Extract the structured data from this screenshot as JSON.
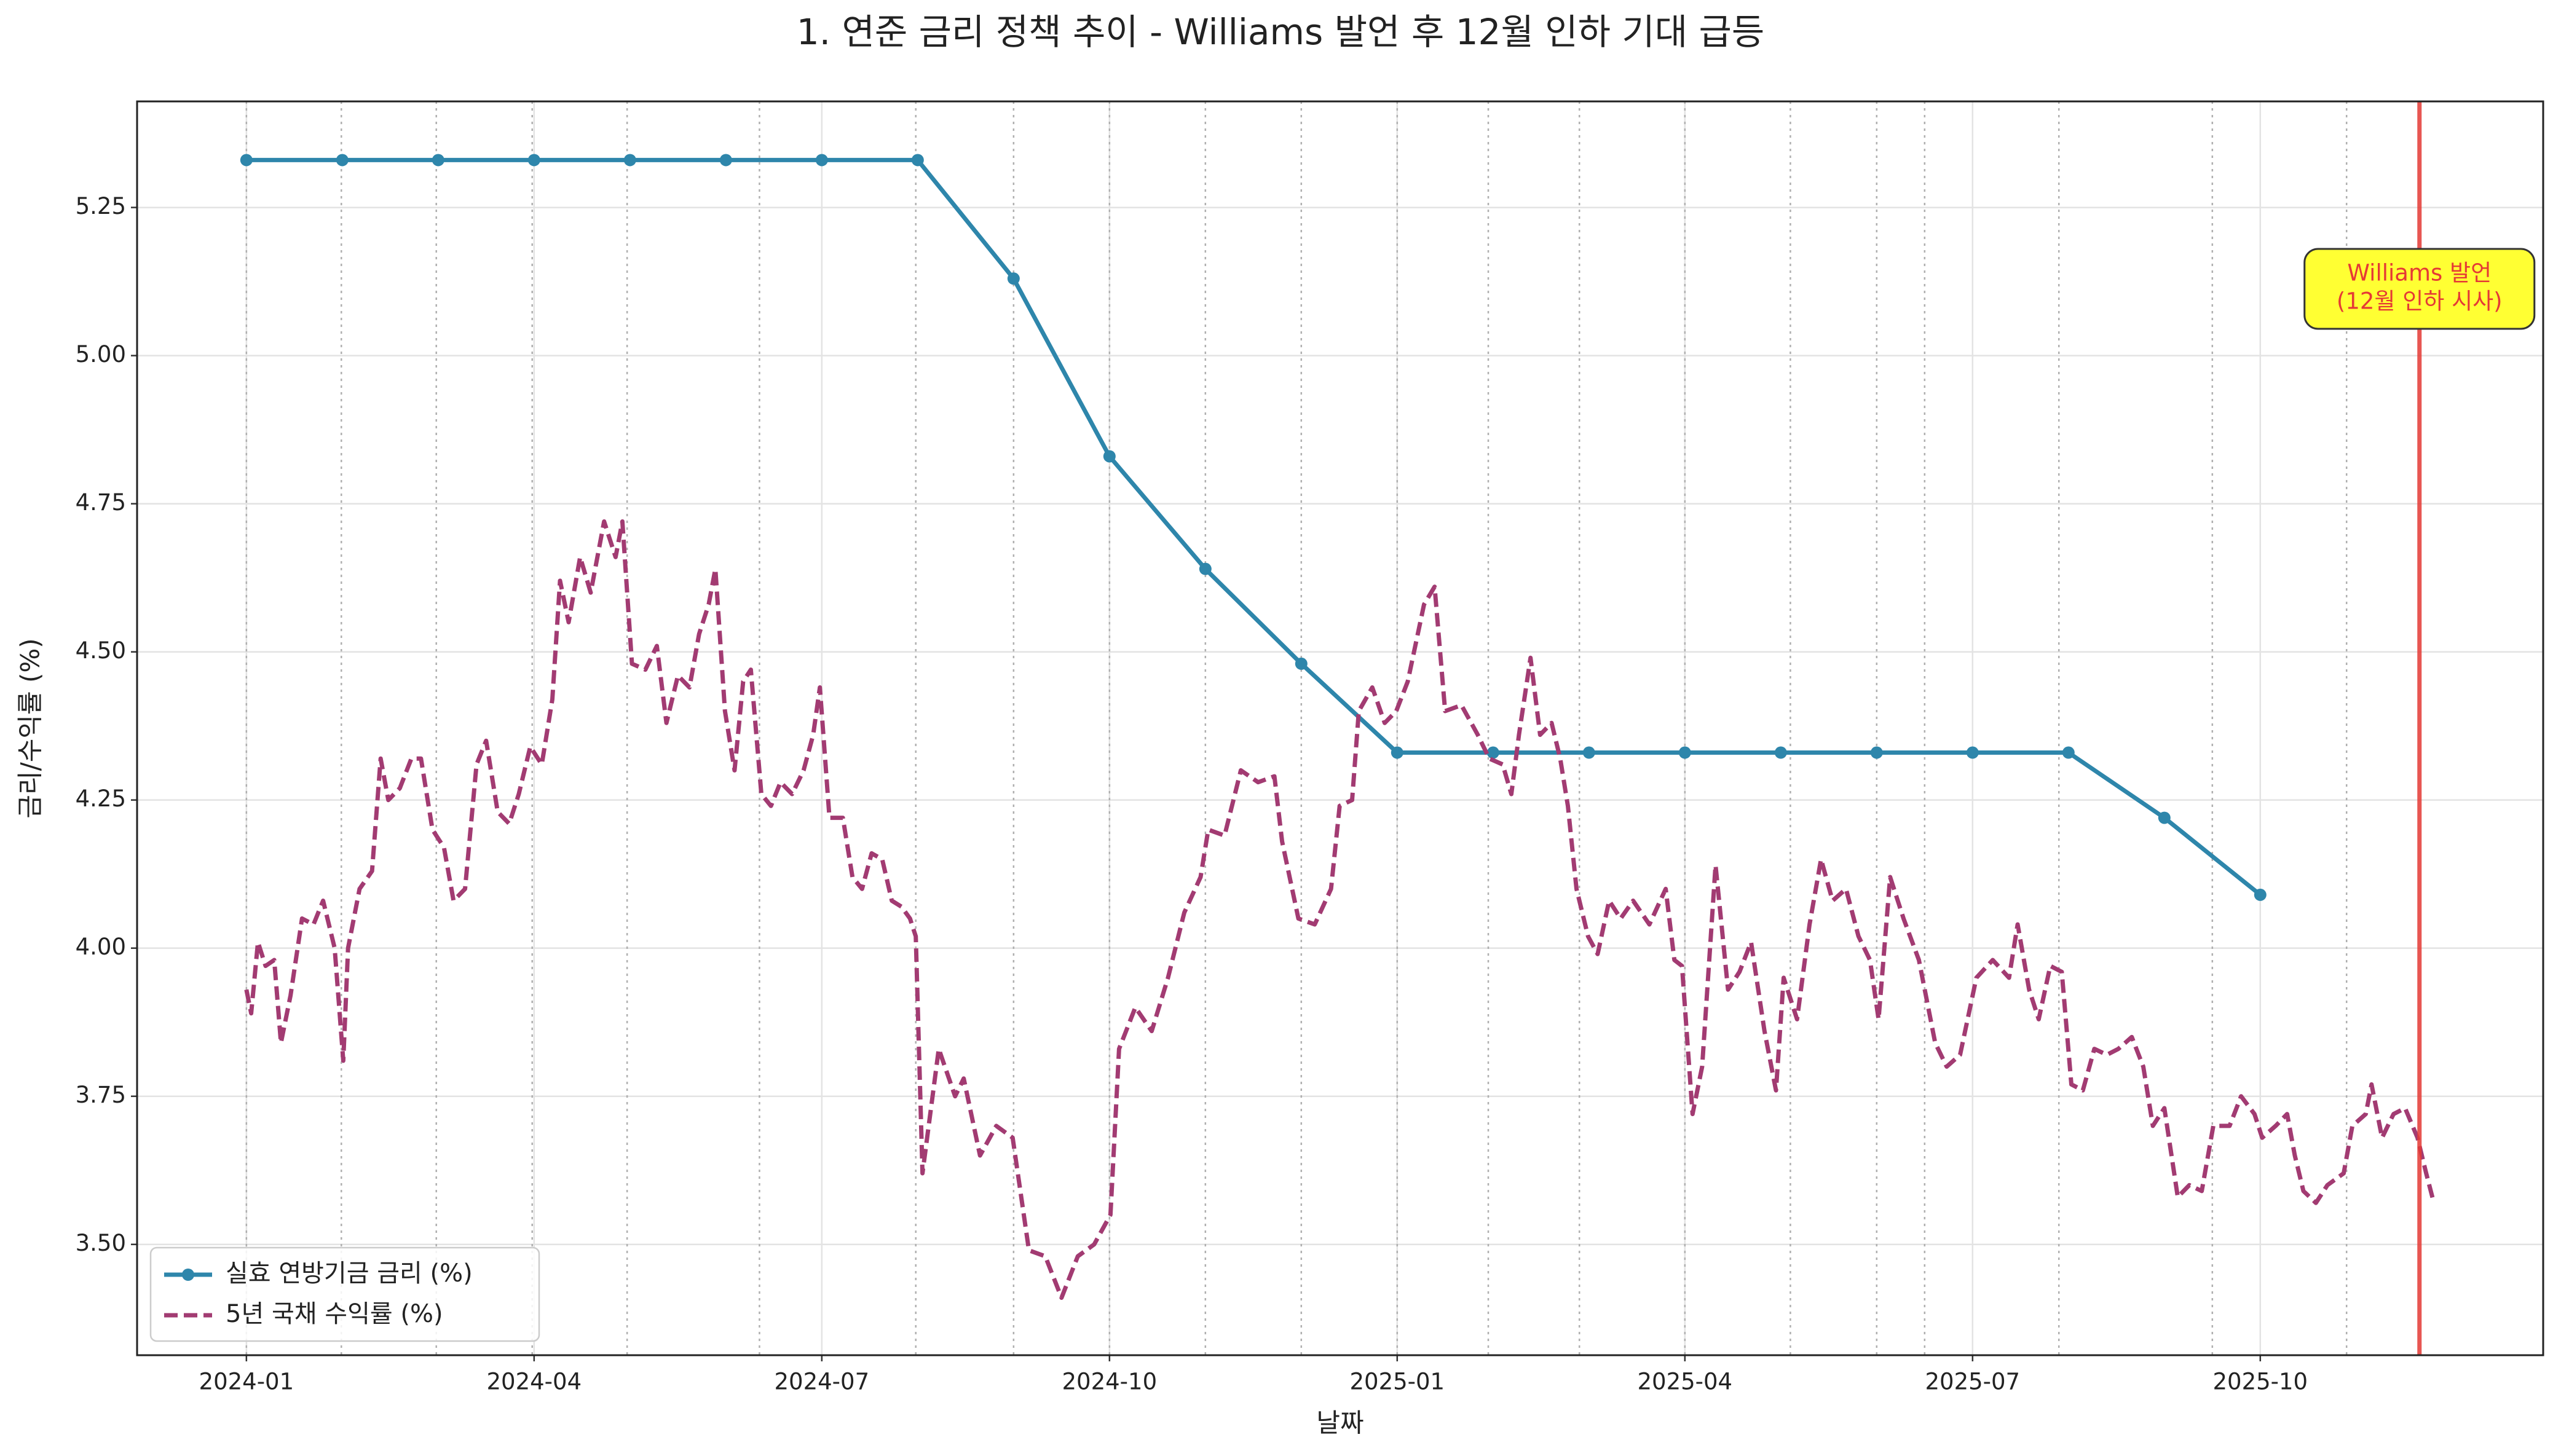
{
  "chart_data": {
    "type": "line",
    "title": "1. 연준 금리 정책 추이 - Williams 발언 후 12월 인하 기대 급등",
    "xlabel": "날짜",
    "ylabel": "금리/수익률 (%)",
    "xlim": [
      -1.14,
      23.95
    ],
    "ylim": [
      3.313,
      5.429
    ],
    "xticks": [
      {
        "value": 0,
        "label": "2024-01"
      },
      {
        "value": 3,
        "label": "2024-04"
      },
      {
        "value": 6,
        "label": "2024-07"
      },
      {
        "value": 9,
        "label": "2024-10"
      },
      {
        "value": 12,
        "label": "2025-01"
      },
      {
        "value": 15,
        "label": "2025-04"
      },
      {
        "value": 18,
        "label": "2025-07"
      },
      {
        "value": 21,
        "label": "2025-10"
      }
    ],
    "yticks": [
      {
        "value": 3.5,
        "label": "3.50"
      },
      3.75,
      {
        "value": 4,
        "label": "4.00"
      },
      4.25,
      {
        "value": 4.5,
        "label": "4.50"
      },
      4.75,
      {
        "value": 5,
        "label": "5.00"
      },
      5.25
    ],
    "grid": true,
    "legend": "lower left",
    "reference_lines": [
      0,
      0.99,
      1.98,
      2.98,
      3.97,
      5.35,
      6.98,
      8.0,
      9.0,
      10.0,
      11.0,
      12.0,
      12.95,
      13.9,
      15.0,
      16.1,
      17.0,
      17.5,
      18.9,
      20.5,
      21.9
    ],
    "event_line": {
      "x": 22.66,
      "color": "#e53935"
    },
    "annotation": [
      "Williams 발언",
      "(12월 인하 시사)"
    ],
    "series": [
      {
        "name": "실효 연방기금 금리 (%)",
        "color": "#2e86ab",
        "style": "solid",
        "markers": true,
        "x": [
          0,
          1,
          2,
          3,
          4,
          5,
          6,
          7,
          8,
          9,
          10,
          11,
          12,
          13,
          14,
          15,
          16,
          17,
          18,
          19,
          20,
          21
        ],
        "values": [
          5.33,
          5.33,
          5.33,
          5.33,
          5.33,
          5.33,
          5.33,
          5.33,
          5.13,
          4.83,
          4.64,
          4.48,
          4.33,
          4.33,
          4.33,
          4.33,
          4.33,
          4.33,
          4.33,
          4.33,
          4.22,
          4.09
        ]
      },
      {
        "name": "5년 국채 수익률 (%)",
        "color": "#a23b72",
        "style": "dashed",
        "markers": false,
        "x": [
          0.0,
          0.05,
          0.12,
          0.2,
          0.29,
          0.36,
          0.46,
          0.58,
          0.7,
          0.8,
          0.92,
          1.01,
          1.06,
          1.18,
          1.31,
          1.4,
          1.48,
          1.6,
          1.72,
          1.82,
          1.94,
          2.06,
          2.16,
          2.28,
          2.4,
          2.5,
          2.62,
          2.74,
          2.84,
          2.96,
          3.08,
          3.19,
          3.27,
          3.36,
          3.48,
          3.59,
          3.73,
          3.85,
          3.92,
          4.02,
          4.16,
          4.28,
          4.38,
          4.5,
          4.62,
          4.72,
          4.82,
          4.89,
          4.99,
          5.09,
          5.18,
          5.26,
          5.37,
          5.47,
          5.57,
          5.69,
          5.81,
          5.91,
          5.98,
          6.08,
          6.22,
          6.32,
          6.42,
          6.52,
          6.63,
          6.73,
          6.83,
          6.92,
          6.98,
          7.05,
          7.22,
          7.39,
          7.48,
          7.65,
          7.82,
          7.99,
          8.16,
          8.33,
          8.5,
          8.67,
          8.84,
          9.01,
          9.1,
          9.27,
          9.44,
          9.61,
          9.78,
          9.95,
          10.03,
          10.2,
          10.37,
          10.55,
          10.72,
          10.8,
          10.97,
          11.14,
          11.31,
          11.4,
          11.53,
          11.6,
          11.74,
          11.87,
          11.99,
          12.11,
          12.28,
          12.39,
          12.5,
          12.67,
          12.84,
          12.96,
          13.1,
          13.19,
          13.27,
          13.39,
          13.49,
          13.61,
          13.7,
          13.78,
          13.87,
          13.99,
          14.09,
          14.21,
          14.33,
          14.46,
          14.63,
          14.8,
          14.89,
          14.97,
          15.08,
          15.18,
          15.32,
          15.45,
          15.57,
          15.69,
          15.83,
          15.95,
          16.03,
          16.17,
          16.3,
          16.42,
          16.54,
          16.68,
          16.81,
          16.93,
          17.02,
          17.14,
          17.28,
          17.44,
          17.61,
          17.73,
          17.87,
          18.04,
          18.21,
          18.38,
          18.47,
          18.59,
          18.69,
          18.81,
          18.93,
          19.03,
          19.15,
          19.27,
          19.4,
          19.52,
          19.66,
          19.78,
          19.88,
          20.0,
          20.14,
          20.26,
          20.39,
          20.51,
          20.68,
          20.8,
          20.94,
          21.02,
          21.16,
          21.28,
          21.36,
          21.45,
          21.58,
          21.7,
          21.87,
          21.96,
          22.1,
          22.16,
          22.27,
          22.39,
          22.51,
          22.64,
          22.73,
          22.81
        ],
        "values": [
          3.93,
          3.89,
          4.01,
          3.97,
          3.98,
          3.84,
          3.92,
          4.05,
          4.04,
          4.08,
          4.0,
          3.81,
          4.0,
          4.1,
          4.13,
          4.32,
          4.25,
          4.27,
          4.32,
          4.32,
          4.2,
          4.17,
          4.08,
          4.1,
          4.31,
          4.35,
          4.23,
          4.21,
          4.26,
          4.34,
          4.31,
          4.42,
          4.62,
          4.55,
          4.66,
          4.6,
          4.72,
          4.66,
          4.72,
          4.48,
          4.47,
          4.51,
          4.38,
          4.46,
          4.44,
          4.53,
          4.58,
          4.64,
          4.4,
          4.3,
          4.45,
          4.47,
          4.26,
          4.24,
          4.28,
          4.26,
          4.3,
          4.36,
          4.44,
          4.22,
          4.22,
          4.12,
          4.1,
          4.16,
          4.15,
          4.08,
          4.07,
          4.05,
          4.02,
          3.62,
          3.83,
          3.75,
          3.78,
          3.65,
          3.7,
          3.68,
          3.49,
          3.48,
          3.41,
          3.48,
          3.5,
          3.55,
          3.83,
          3.9,
          3.86,
          3.95,
          4.06,
          4.12,
          4.2,
          4.19,
          4.3,
          4.28,
          4.29,
          4.18,
          4.05,
          4.04,
          4.1,
          4.24,
          4.25,
          4.4,
          4.44,
          4.38,
          4.4,
          4.45,
          4.58,
          4.61,
          4.4,
          4.41,
          4.36,
          4.32,
          4.31,
          4.26,
          4.36,
          4.49,
          4.36,
          4.38,
          4.32,
          4.24,
          4.1,
          4.02,
          3.99,
          4.08,
          4.05,
          4.08,
          4.04,
          4.1,
          3.98,
          3.97,
          3.72,
          3.8,
          4.14,
          3.93,
          3.96,
          4.01,
          3.86,
          3.76,
          3.95,
          3.88,
          4.04,
          4.15,
          4.08,
          4.1,
          4.02,
          3.98,
          3.88,
          4.12,
          4.05,
          3.98,
          3.84,
          3.8,
          3.82,
          3.95,
          3.98,
          3.95,
          4.04,
          3.93,
          3.88,
          3.97,
          3.96,
          3.77,
          3.76,
          3.83,
          3.82,
          3.83,
          3.85,
          3.8,
          3.7,
          3.73,
          3.58,
          3.6,
          3.59,
          3.7,
          3.7,
          3.75,
          3.72,
          3.68,
          3.7,
          3.72,
          3.65,
          3.59,
          3.57,
          3.6,
          3.62,
          3.7,
          3.72,
          3.77,
          3.68,
          3.72,
          3.73,
          3.68,
          3.62,
          3.57
        ]
      }
    ]
  }
}
